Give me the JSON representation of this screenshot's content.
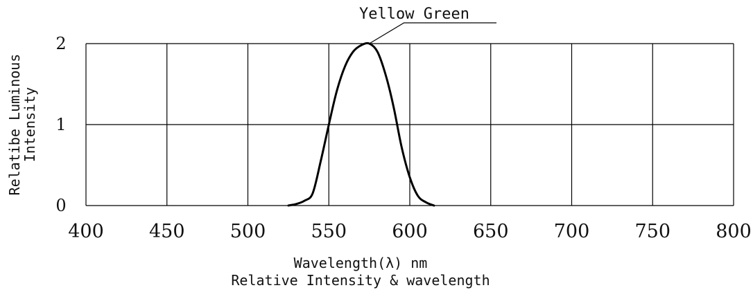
{
  "chart_data": {
    "type": "line",
    "title": "",
    "subtitle": "Relative  Intensity & wavelength",
    "xlabel": "Wavelength(λ) nm",
    "ylabel": [
      "Relatibe  Luminous",
      "Intensity"
    ],
    "xlim": [
      400,
      800
    ],
    "ylim": [
      0,
      2
    ],
    "x_ticks": [
      "400",
      "450",
      "500",
      "550",
      "600",
      "650",
      "700",
      "750",
      "800"
    ],
    "y_ticks": [
      "0",
      "1",
      "2"
    ],
    "grid": true,
    "series": [
      {
        "name": "Yellow Green",
        "x": [
          525,
          530,
          535,
          540,
          545,
          550,
          555,
          560,
          565,
          570,
          575,
          580,
          585,
          590,
          595,
          600,
          605,
          610,
          615
        ],
        "y": [
          0.0,
          0.02,
          0.06,
          0.15,
          0.55,
          1.0,
          1.42,
          1.72,
          1.9,
          1.98,
          2.0,
          1.9,
          1.62,
          1.22,
          0.72,
          0.35,
          0.12,
          0.04,
          0.0
        ]
      }
    ]
  }
}
